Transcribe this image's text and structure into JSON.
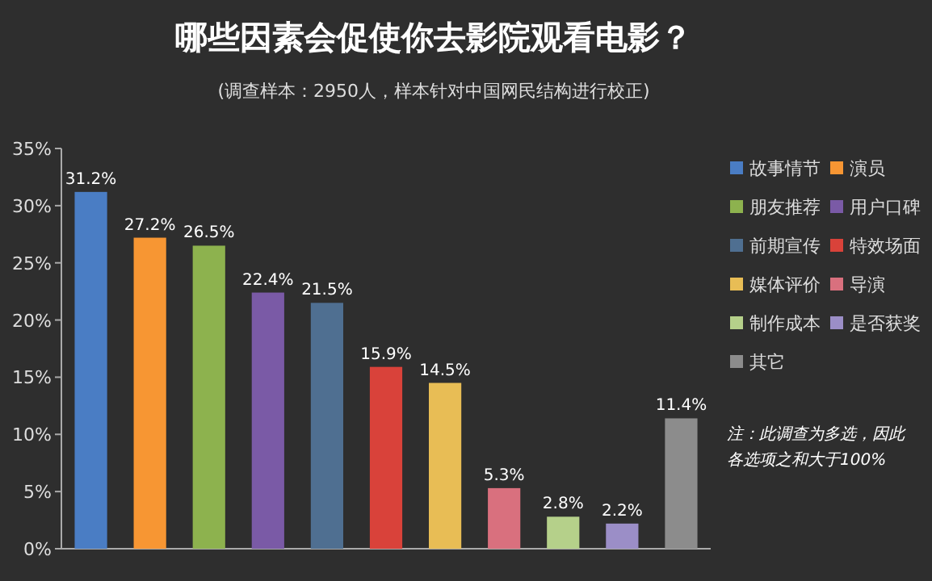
{
  "chart_data": {
    "type": "bar",
    "title": "哪些因素会促使你去影院观看电影？",
    "subtitle": "(调查样本：2950人，样本针对中国网民结构进行校正)",
    "categories": [
      null,
      null,
      null,
      null,
      null,
      null,
      null,
      null,
      null,
      null,
      null
    ],
    "stacked": true,
    "series": [
      {
        "name": "故事情节",
        "color": "#4a7dc4",
        "values": [
          31.2,
          null,
          null,
          null,
          null,
          null,
          null,
          null,
          null,
          null,
          null
        ],
        "value_labels": [
          "31.2%",
          null,
          null,
          null,
          null,
          null,
          null,
          null,
          null,
          null,
          null
        ]
      },
      {
        "name": "演员",
        "color": "#f79633",
        "values": [
          null,
          27.2,
          null,
          null,
          null,
          null,
          null,
          null,
          null,
          null,
          null
        ],
        "value_labels": [
          null,
          "27.2%",
          null,
          null,
          null,
          null,
          null,
          null,
          null,
          null,
          null
        ]
      },
      {
        "name": "朋友推荐",
        "color": "#8db24e",
        "values": [
          null,
          null,
          26.5,
          null,
          null,
          null,
          null,
          null,
          null,
          null,
          null
        ],
        "value_labels": [
          null,
          null,
          "26.5%",
          null,
          null,
          null,
          null,
          null,
          null,
          null,
          null
        ]
      },
      {
        "name": "用户口碑",
        "color": "#7a5aa6",
        "values": [
          null,
          null,
          null,
          22.4,
          null,
          null,
          null,
          null,
          null,
          null,
          null
        ],
        "value_labels": [
          null,
          null,
          null,
          "22.4%",
          null,
          null,
          null,
          null,
          null,
          null,
          null
        ]
      },
      {
        "name": "前期宣传",
        "color": "#4f6f91",
        "values": [
          null,
          null,
          null,
          null,
          21.5,
          null,
          null,
          null,
          null,
          null,
          null
        ],
        "value_labels": [
          null,
          null,
          null,
          null,
          "21.5%",
          null,
          null,
          null,
          null,
          null,
          null
        ]
      },
      {
        "name": "特效场面",
        "color": "#d9423a",
        "values": [
          null,
          null,
          null,
          null,
          null,
          15.9,
          null,
          null,
          null,
          null,
          null
        ],
        "value_labels": [
          null,
          null,
          null,
          null,
          null,
          "15.9%",
          null,
          null,
          null,
          null,
          null
        ]
      },
      {
        "name": "媒体评价",
        "color": "#e8bd55",
        "values": [
          null,
          null,
          null,
          null,
          null,
          null,
          14.5,
          null,
          null,
          null,
          null
        ],
        "value_labels": [
          null,
          null,
          null,
          null,
          null,
          null,
          "14.5%",
          null,
          null,
          null,
          null
        ]
      },
      {
        "name": "导演",
        "color": "#d9707e",
        "values": [
          null,
          null,
          null,
          null,
          null,
          null,
          null,
          5.3,
          null,
          null,
          null
        ],
        "value_labels": [
          null,
          null,
          null,
          null,
          null,
          null,
          null,
          "5.3%",
          null,
          null,
          null
        ]
      },
      {
        "name": "制作成本",
        "color": "#b5d08a",
        "values": [
          null,
          null,
          null,
          null,
          null,
          null,
          null,
          null,
          2.8,
          null,
          null
        ],
        "value_labels": [
          null,
          null,
          null,
          null,
          null,
          null,
          null,
          null,
          "2.8%",
          null,
          null
        ]
      },
      {
        "name": "是否获奖",
        "color": "#9b8ec7",
        "values": [
          null,
          null,
          null,
          null,
          null,
          null,
          null,
          null,
          null,
          2.2,
          null
        ],
        "value_labels": [
          null,
          null,
          null,
          null,
          null,
          null,
          null,
          null,
          null,
          "2.2%",
          null
        ]
      },
      {
        "name": "其它",
        "color": "#8c8c8c",
        "values": [
          null,
          null,
          null,
          null,
          null,
          null,
          null,
          null,
          null,
          null,
          11.4
        ],
        "value_labels": [
          null,
          null,
          null,
          null,
          null,
          null,
          null,
          null,
          null,
          null,
          "11.4%"
        ]
      }
    ],
    "ylim": [
      0,
      35
    ],
    "yticks": [
      {
        "value": 0,
        "label": "0%"
      },
      {
        "value": 5,
        "label": "5%"
      },
      {
        "value": 10,
        "label": "10%"
      },
      {
        "value": 15,
        "label": "15%"
      },
      {
        "value": 20,
        "label": "20%"
      },
      {
        "value": 25,
        "label": "25%"
      },
      {
        "value": 30,
        "label": "30%"
      },
      {
        "value": 35,
        "label": "35%"
      }
    ],
    "legend": "right",
    "annotations": [
      "注：此调查为多选，因此各选项之和大于100%"
    ]
  }
}
